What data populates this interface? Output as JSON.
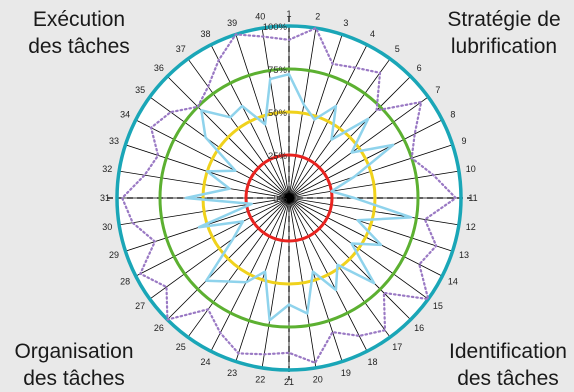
{
  "corners": {
    "top_left": [
      "Exécution",
      "des tâches"
    ],
    "top_right": [
      "Stratégie de",
      "lubrification"
    ],
    "bottom_left": [
      "Organisation",
      "des tâches"
    ],
    "bottom_right": [
      "Identification",
      "des tâches"
    ]
  },
  "colors": {
    "background": "#e9e9e9",
    "outer_ring": "#1aa6b7",
    "ring_75": "#5cb031",
    "ring_50": "#f0d21c",
    "ring_25": "#e8231f",
    "series_solid": "#8fd3ec",
    "series_dotted": "#9a79c4",
    "spokes": "#000000"
  },
  "chart_data": {
    "type": "radar",
    "axes": [
      "1",
      "2",
      "3",
      "4",
      "5",
      "6",
      "7",
      "8",
      "9",
      "10",
      "11",
      "12",
      "13",
      "14",
      "15",
      "16",
      "17",
      "18",
      "19",
      "20",
      "21",
      "22",
      "23",
      "24",
      "25",
      "26",
      "27",
      "28",
      "29",
      "30",
      "31",
      "32",
      "33",
      "34",
      "35",
      "36",
      "37",
      "38",
      "39",
      "40"
    ],
    "radial_ticks": [
      "0%",
      "25%",
      "50%",
      "75%",
      "100%"
    ],
    "rlim": [
      0,
      100
    ],
    "ring_values": [
      25,
      50,
      75,
      100
    ],
    "series": [
      {
        "style": "solid",
        "values": [
          72,
          55,
          48,
          60,
          42,
          65,
          45,
          68,
          40,
          25,
          38,
          72,
          42,
          60,
          45,
          70,
          48,
          60,
          45,
          68,
          62,
          72,
          45,
          55,
          60,
          68,
          40,
          30,
          55,
          22,
          60,
          35,
          50,
          35,
          60,
          72,
          58,
          60,
          45,
          70
        ]
      },
      {
        "style": "dotted",
        "values": [
          92,
          100,
          82,
          85,
          90,
          72,
          95,
          82,
          75,
          85,
          97,
          80,
          90,
          85,
          100,
          78,
          95,
          90,
          82,
          97,
          90,
          92,
          95,
          88,
          80,
          100,
          88,
          97,
          82,
          92,
          97,
          85,
          80,
          90,
          85,
          75,
          80,
          90,
          100,
          95
        ]
      }
    ]
  }
}
